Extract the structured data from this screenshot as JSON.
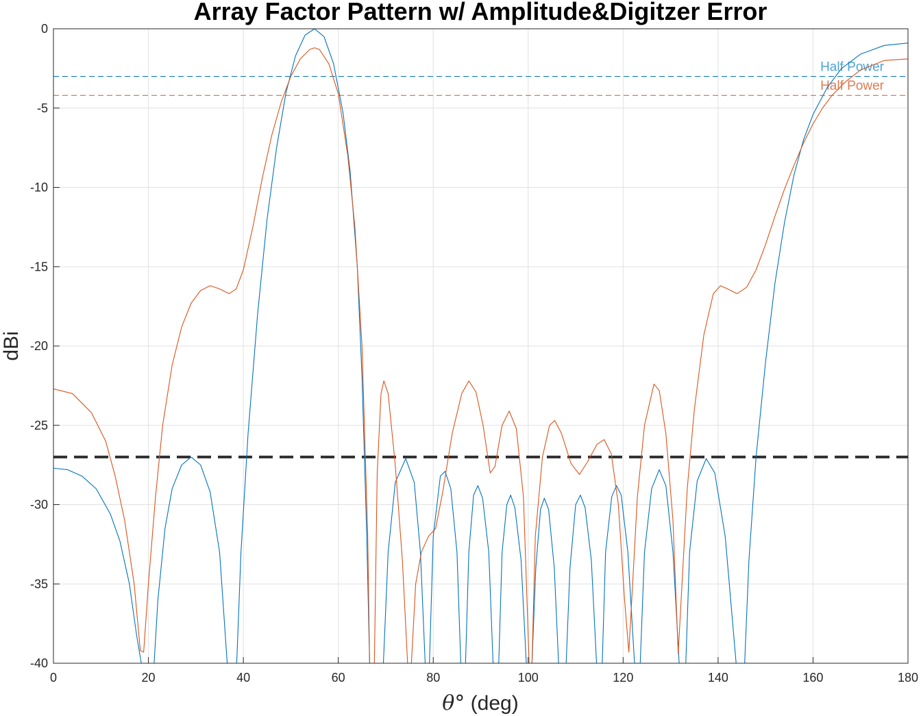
{
  "chart_data": {
    "type": "line",
    "title": "Array Factor Pattern w/ Amplitude&Digitzer Error",
    "xlabel_symbol": "θ°",
    "xlabel_unit": " (deg)",
    "ylabel": "dBi",
    "xlim": [
      0,
      180
    ],
    "ylim": [
      -40,
      0
    ],
    "xticks": [
      0,
      20,
      40,
      60,
      80,
      100,
      120,
      140,
      160,
      180
    ],
    "yticks": [
      0,
      -5,
      -10,
      -15,
      -20,
      -25,
      -30,
      -35,
      -40
    ],
    "grid": true,
    "colors": {
      "blue": "#0072BD",
      "orange": "#D95319",
      "blue_text": "#4DA3D6",
      "orange_text": "#E07B52",
      "threshold": "#333333"
    },
    "reference_lines": [
      {
        "y": -3.0,
        "label": "Half Power",
        "color": "#0072BD",
        "style": "dashed"
      },
      {
        "y": -4.2,
        "label": "Half Power",
        "color": "#D95319",
        "style": "dashed"
      },
      {
        "y": -27.0,
        "label": "",
        "color": "#333333",
        "style": "dashed-thick"
      }
    ],
    "series": [
      {
        "color": "#0072BD",
        "points": [
          [
            0,
            -27.7
          ],
          [
            3,
            -27.8
          ],
          [
            6,
            -28.2
          ],
          [
            9,
            -29.0
          ],
          [
            12,
            -30.6
          ],
          [
            14,
            -32.3
          ],
          [
            16,
            -35.0
          ],
          [
            17.5,
            -38.2
          ],
          [
            18.5,
            -40
          ],
          "break",
          [
            21.2,
            -40
          ],
          [
            22,
            -36.0
          ],
          [
            23.5,
            -31.5
          ],
          [
            25,
            -29.0
          ],
          [
            27,
            -27.5
          ],
          [
            29,
            -27.0
          ],
          [
            31,
            -27.5
          ],
          [
            33,
            -29.2
          ],
          [
            35,
            -33.0
          ],
          [
            36.6,
            -40
          ],
          "break",
          [
            38.6,
            -40
          ],
          [
            39.5,
            -33.0
          ],
          [
            41,
            -25.5
          ],
          [
            43,
            -18.0
          ],
          [
            45,
            -12.0
          ],
          [
            47,
            -7.5
          ],
          [
            49,
            -4.0
          ],
          [
            51,
            -1.7
          ],
          [
            53,
            -0.4
          ],
          [
            55,
            0
          ],
          [
            57,
            -0.5
          ],
          [
            59,
            -2.2
          ],
          [
            61,
            -5.3
          ],
          [
            62.5,
            -9.0
          ],
          [
            64,
            -15.0
          ],
          [
            65,
            -22.0
          ],
          [
            66,
            -32.0
          ],
          [
            66.6,
            -40
          ],
          "break",
          [
            69.5,
            -40
          ],
          [
            70.5,
            -33.0
          ],
          [
            72,
            -28.6
          ],
          [
            74.2,
            -27.1
          ],
          [
            76,
            -28.6
          ],
          [
            77.3,
            -33.0
          ],
          [
            78.3,
            -40
          ],
          "break",
          [
            79.2,
            -40
          ],
          [
            80,
            -32.0
          ],
          [
            81.5,
            -28.2
          ],
          [
            82.5,
            -27.9
          ],
          [
            83.7,
            -29.0
          ],
          [
            85,
            -33.0
          ],
          [
            85.8,
            -40
          ],
          "break",
          [
            86.8,
            -40
          ],
          [
            87.5,
            -33.0
          ],
          [
            88.5,
            -29.4
          ],
          [
            89.4,
            -28.8
          ],
          [
            90.4,
            -29.6
          ],
          [
            91.7,
            -33.0
          ],
          [
            92.6,
            -40
          ],
          "break",
          [
            93.8,
            -40
          ],
          [
            94.5,
            -33.0
          ],
          [
            95.5,
            -30.0
          ],
          [
            96.3,
            -29.4
          ],
          [
            97.2,
            -30.2
          ],
          [
            98.5,
            -33.5
          ],
          [
            99.6,
            -40
          ],
          "break",
          [
            100.8,
            -40
          ],
          [
            101.6,
            -34.0
          ],
          [
            102.6,
            -30.3
          ],
          [
            103.4,
            -29.6
          ],
          [
            104.3,
            -30.3
          ],
          [
            105.5,
            -34.0
          ],
          [
            106.4,
            -40
          ],
          "break",
          [
            108.0,
            -40
          ],
          [
            108.8,
            -34.0
          ],
          [
            110.0,
            -30.0
          ],
          [
            111.0,
            -29.4
          ],
          [
            112.0,
            -30.2
          ],
          [
            113.3,
            -33.5
          ],
          [
            114.4,
            -40
          ],
          "break",
          [
            115.6,
            -40
          ],
          [
            116.3,
            -33.0
          ],
          [
            117.6,
            -29.5
          ],
          [
            118.6,
            -28.8
          ],
          [
            119.6,
            -29.4
          ],
          [
            121.0,
            -33.0
          ],
          [
            122.4,
            -40
          ],
          "break",
          [
            123.6,
            -40
          ],
          [
            124.5,
            -33.0
          ],
          [
            126.0,
            -29.0
          ],
          [
            127.6,
            -27.8
          ],
          [
            129.0,
            -28.8
          ],
          [
            130.5,
            -33.0
          ],
          [
            131.8,
            -40
          ],
          "break",
          [
            133.2,
            -40
          ],
          [
            134.0,
            -33.0
          ],
          [
            135.6,
            -28.5
          ],
          [
            137.5,
            -27.1
          ],
          [
            139.3,
            -28.0
          ],
          [
            141.5,
            -32.0
          ],
          [
            143.8,
            -40
          ],
          "break",
          [
            145.6,
            -40
          ],
          [
            146.5,
            -33.5
          ],
          [
            148,
            -27.0
          ],
          [
            150,
            -21.0
          ],
          [
            152,
            -16.0
          ],
          [
            154,
            -12.2
          ],
          [
            156,
            -9.2
          ],
          [
            158,
            -7.0
          ],
          [
            160,
            -5.4
          ],
          [
            163,
            -3.7
          ],
          [
            166,
            -2.5
          ],
          [
            170,
            -1.6
          ],
          [
            175,
            -1.05
          ],
          [
            180,
            -0.9
          ]
        ]
      },
      {
        "color": "#D95319",
        "points": [
          [
            0,
            -22.7
          ],
          [
            4,
            -23.0
          ],
          [
            8,
            -24.2
          ],
          [
            11,
            -26.0
          ],
          [
            13,
            -28.2
          ],
          [
            15,
            -31.0
          ],
          [
            17,
            -35.0
          ],
          [
            18.3,
            -39.2
          ],
          [
            19,
            -39.3
          ],
          [
            20,
            -35.0
          ],
          [
            21.5,
            -29.5
          ],
          [
            23,
            -25.0
          ],
          [
            25,
            -21.2
          ],
          [
            27,
            -18.8
          ],
          [
            29,
            -17.3
          ],
          [
            31,
            -16.5
          ],
          [
            33,
            -16.2
          ],
          [
            35,
            -16.4
          ],
          [
            37,
            -16.7
          ],
          [
            38.5,
            -16.4
          ],
          [
            40,
            -15.2
          ],
          [
            42,
            -12.5
          ],
          [
            44,
            -9.4
          ],
          [
            46,
            -6.7
          ],
          [
            48,
            -4.6
          ],
          [
            50,
            -3.0
          ],
          [
            52,
            -1.9
          ],
          [
            54,
            -1.3
          ],
          [
            55,
            -1.2
          ],
          [
            56,
            -1.3
          ],
          [
            58,
            -2.2
          ],
          [
            60,
            -4.1
          ],
          [
            62,
            -8.0
          ],
          [
            63.5,
            -12.5
          ],
          [
            65,
            -20.0
          ],
          [
            66.2,
            -32.0
          ],
          [
            66.6,
            -40
          ],
          "break",
          [
            67.6,
            -40
          ],
          [
            68.2,
            -28.0
          ],
          [
            69.0,
            -23.0
          ],
          [
            69.6,
            -22.2
          ],
          [
            70.5,
            -23.0
          ],
          [
            72,
            -27.5
          ],
          [
            73.5,
            -33.5
          ],
          [
            74.6,
            -40
          ],
          "break",
          [
            75.4,
            -40
          ],
          [
            76.3,
            -35.0
          ],
          [
            77.5,
            -33.0
          ],
          [
            79,
            -32.0
          ],
          [
            80.5,
            -31.5
          ],
          [
            82,
            -29.2
          ],
          [
            84,
            -25.5
          ],
          [
            86,
            -23.0
          ],
          [
            87.5,
            -22.2
          ],
          [
            89,
            -22.9
          ],
          [
            90.5,
            -25.0
          ],
          [
            92,
            -28.0
          ],
          [
            93,
            -27.6
          ],
          [
            94.5,
            -25.0
          ],
          [
            96,
            -24.1
          ],
          [
            97.5,
            -25.2
          ],
          [
            99,
            -29.5
          ],
          [
            100.2,
            -40
          ],
          "break",
          [
            100.8,
            -40
          ],
          [
            101.5,
            -32.0
          ],
          [
            103,
            -27.0
          ],
          [
            104.5,
            -25.0
          ],
          [
            105.6,
            -24.7
          ],
          [
            107,
            -25.5
          ],
          [
            109,
            -27.4
          ],
          [
            110.8,
            -28.1
          ],
          [
            112.5,
            -27.3
          ],
          [
            114.5,
            -26.2
          ],
          [
            116,
            -25.9
          ],
          [
            117.5,
            -26.8
          ],
          [
            119,
            -30.0
          ],
          [
            120.3,
            -36.0
          ],
          [
            121.2,
            -39.3
          ],
          [
            122,
            -35.0
          ],
          [
            123,
            -29.5
          ],
          [
            124.5,
            -25.0
          ],
          [
            126.5,
            -22.4
          ],
          [
            127.6,
            -22.8
          ],
          [
            129,
            -25.5
          ],
          [
            130.5,
            -31.0
          ],
          [
            131.6,
            -39.4
          ],
          [
            132.4,
            -35.0
          ],
          [
            133.5,
            -29.0
          ],
          [
            135,
            -24.0
          ],
          [
            137,
            -19.3
          ],
          [
            139,
            -16.7
          ],
          [
            140.5,
            -16.2
          ],
          [
            142,
            -16.4
          ],
          [
            144,
            -16.7
          ],
          [
            146,
            -16.3
          ],
          [
            148,
            -15.2
          ],
          [
            150,
            -13.6
          ],
          [
            152,
            -11.8
          ],
          [
            154,
            -10.1
          ],
          [
            156,
            -8.6
          ],
          [
            158,
            -7.2
          ],
          [
            160,
            -6.0
          ],
          [
            162,
            -5.0
          ],
          [
            164,
            -4.2
          ],
          [
            167,
            -3.3
          ],
          [
            170,
            -2.6
          ],
          [
            175,
            -2.0
          ],
          [
            180,
            -1.9
          ]
        ]
      }
    ]
  }
}
